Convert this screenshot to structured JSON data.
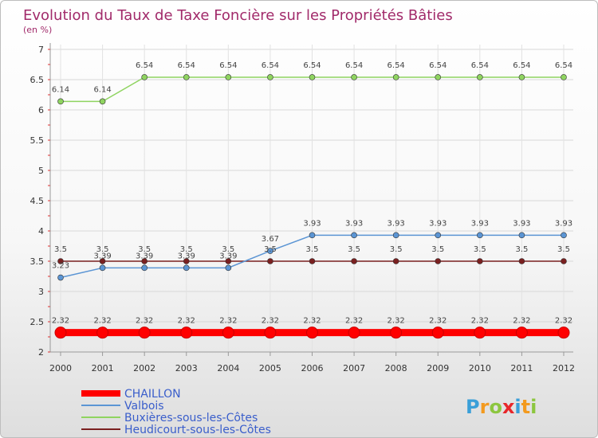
{
  "chart_data": {
    "type": "line",
    "title": "Evolution du Taux de Taxe Foncière sur les Propriétés Bâties",
    "subtitle": "(en %)",
    "x": [
      "2000",
      "2001",
      "2002",
      "2003",
      "2004",
      "2005",
      "2006",
      "2007",
      "2008",
      "2009",
      "2010",
      "2011",
      "2012"
    ],
    "ylim": [
      2,
      7
    ],
    "yticks": [
      "2",
      "2.5",
      "3",
      "3.5",
      "4",
      "4.5",
      "5",
      "5.5",
      "6",
      "6.5",
      "7"
    ],
    "series": [
      {
        "name": "CHAILLON",
        "color": "#ff0000",
        "values": [
          2.32,
          2.32,
          2.32,
          2.32,
          2.32,
          2.32,
          2.32,
          2.32,
          2.32,
          2.32,
          2.32,
          2.32,
          2.32
        ],
        "labels": [
          "2.32",
          "2.32",
          "2.32",
          "2.32",
          "2.32",
          "2.32",
          "2.32",
          "2.32",
          "2.32",
          "2.32",
          "2.32",
          "2.32",
          "2.32"
        ]
      },
      {
        "name": "Valbois",
        "color": "#5b95d4",
        "values": [
          3.23,
          3.39,
          3.39,
          3.39,
          3.39,
          3.67,
          3.93,
          3.93,
          3.93,
          3.93,
          3.93,
          3.93,
          3.93
        ],
        "labels": [
          "3.23",
          "3.39",
          "3.39",
          "3.39",
          "3.39",
          "3.67",
          "3.93",
          "3.93",
          "3.93",
          "3.93",
          "3.93",
          "3.93",
          "3.93"
        ]
      },
      {
        "name": "Buxières-sous-les-Côtes",
        "color": "#8fd460",
        "values": [
          6.14,
          6.14,
          6.54,
          6.54,
          6.54,
          6.54,
          6.54,
          6.54,
          6.54,
          6.54,
          6.54,
          6.54,
          6.54
        ],
        "labels": [
          "6.14",
          "6.14",
          "6.54",
          "6.54",
          "6.54",
          "6.54",
          "6.54",
          "6.54",
          "6.54",
          "6.54",
          "6.54",
          "6.54",
          "6.54"
        ]
      },
      {
        "name": "Heudicourt-sous-les-Côtes",
        "color": "#7a2020",
        "values": [
          3.5,
          3.5,
          3.5,
          3.5,
          3.5,
          3.5,
          3.5,
          3.5,
          3.5,
          3.5,
          3.5,
          3.5,
          3.5
        ],
        "labels": [
          "3.5",
          "3.5",
          "3.5",
          "3.5",
          "3.5",
          "3.5",
          "3.5",
          "3.5",
          "3.5",
          "3.5",
          "3.5",
          "3.5",
          "3.5"
        ]
      }
    ],
    "legend": [
      "CHAILLON",
      "Valbois",
      "Buxières-sous-les-Côtes",
      "Heudicourt-sous-les-Côtes"
    ]
  },
  "logo": {
    "text": "Proxiti",
    "letters": [
      "P",
      "r",
      "o",
      "x",
      "i",
      "t",
      "i"
    ],
    "colors": [
      "#3a9fd8",
      "#f39a1e",
      "#8cc63f",
      "#e8262a",
      "#3a9fd8",
      "#f39a1e",
      "#8cc63f"
    ]
  }
}
